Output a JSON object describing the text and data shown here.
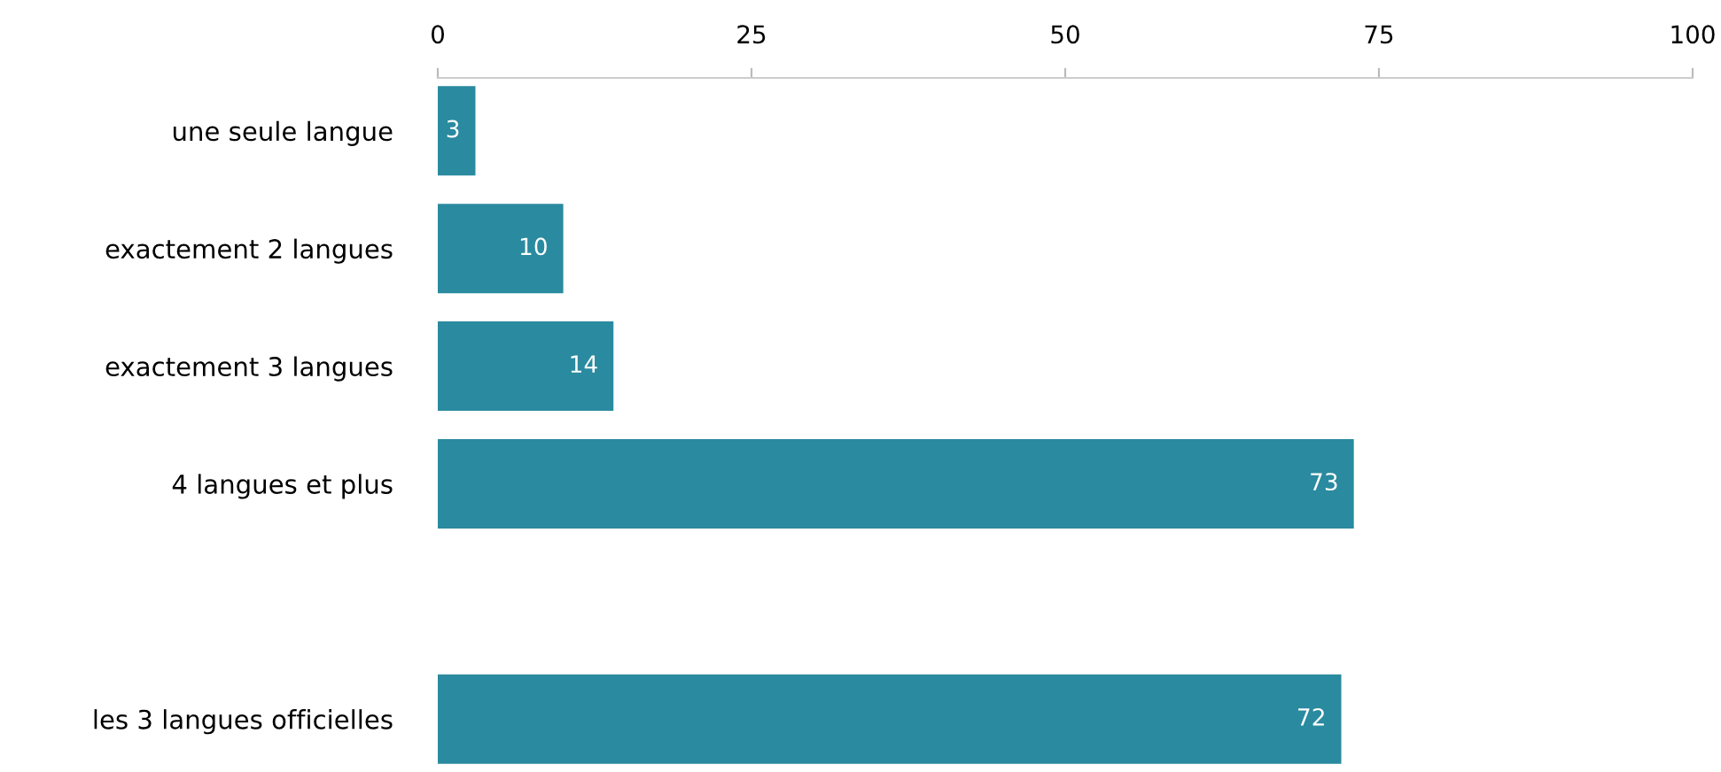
{
  "chart_data": {
    "type": "bar",
    "orientation": "horizontal",
    "categories": [
      "une seule langue",
      "exactement 2 langues",
      "exactement 3 langues",
      "4 langues et plus",
      null,
      "les 3 langues officielles"
    ],
    "values": [
      3,
      10,
      14,
      73,
      null,
      72
    ],
    "color": "#2a8a9f",
    "xlim": [
      0,
      100
    ],
    "xticks": [
      0,
      25,
      50,
      75,
      100
    ],
    "data_labels": true,
    "grid": false
  }
}
